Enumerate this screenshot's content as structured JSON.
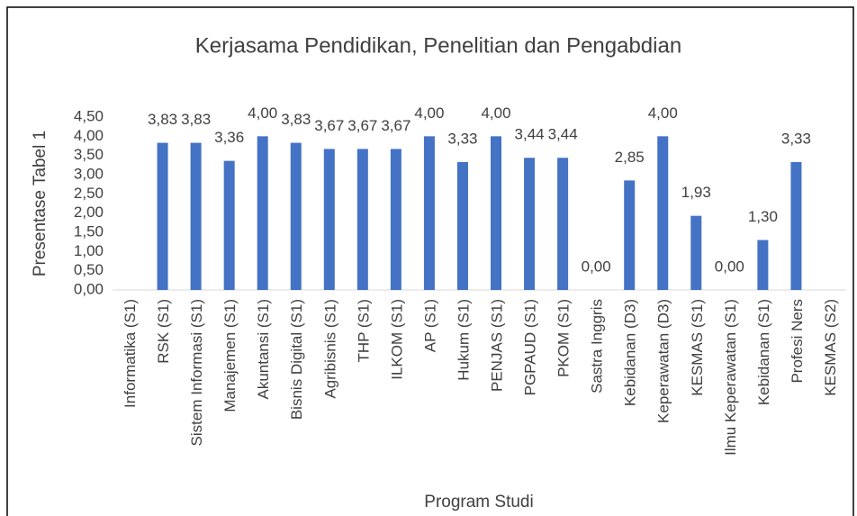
{
  "chart_data": {
    "type": "bar",
    "title": "Kerjasama Pendidikan, Penelitian dan Pengabdian",
    "x_label": "Program Studi",
    "y_label": "Presentase Tabel 1",
    "categories": [
      "Informatika (S1)",
      "RSK (S1)",
      "Sistem Informasi (S1)",
      "Manajemen (S1)",
      "Akuntansi  (S1)",
      "Bisnis Digital  (S1)",
      "Agribisnis  (S1)",
      "THP (S1)",
      "ILKOM (S1)",
      "AP (S1)",
      "Hukum (S1)",
      "PENJAS (S1)",
      "PGPAUD (S1)",
      "PKOM (S1)",
      "Sastra Inggris",
      "Kebidanan  (D3)",
      "Keperawatan  (D3)",
      "KESMAS (S1)",
      "Ilmu Keperawatan (S1)",
      "Kebidanan (S1)",
      "Profesi Ners",
      "KESMAS (S2)"
    ],
    "values": [
      null,
      3.83,
      3.83,
      3.36,
      4.0,
      3.83,
      3.67,
      3.67,
      3.67,
      4.0,
      3.33,
      4.0,
      3.44,
      3.44,
      0,
      2.85,
      4.0,
      1.93,
      0,
      1.3,
      3.33,
      null
    ],
    "value_labels": [
      null,
      "3,83",
      "3,83",
      "3,36",
      "4,00",
      "3,83",
      "3,67",
      "3,67",
      "3,67",
      "4,00",
      "3,33",
      "4,00",
      "3,44",
      "3,44",
      "0,00",
      "2,85",
      "4,00",
      "1,93",
      "0,00",
      "1,30",
      "3,33",
      null
    ],
    "color": "#4472c4",
    "ylim": [
      0,
      4.5
    ],
    "yticks": [
      {
        "value": 0,
        "label": "0,00"
      },
      {
        "value": 0.5,
        "label": "0,50"
      },
      {
        "value": 1,
        "label": "1,00"
      },
      {
        "value": 1.5,
        "label": "1,50"
      },
      {
        "value": 2,
        "label": "2,00"
      },
      {
        "value": 2.5,
        "label": "2,50"
      },
      {
        "value": 3,
        "label": "3,00"
      },
      {
        "value": 3.5,
        "label": "3,50"
      },
      {
        "value": 4,
        "label": "4,00"
      },
      {
        "value": 4.5,
        "label": "4,50"
      }
    ],
    "grid": false
  }
}
